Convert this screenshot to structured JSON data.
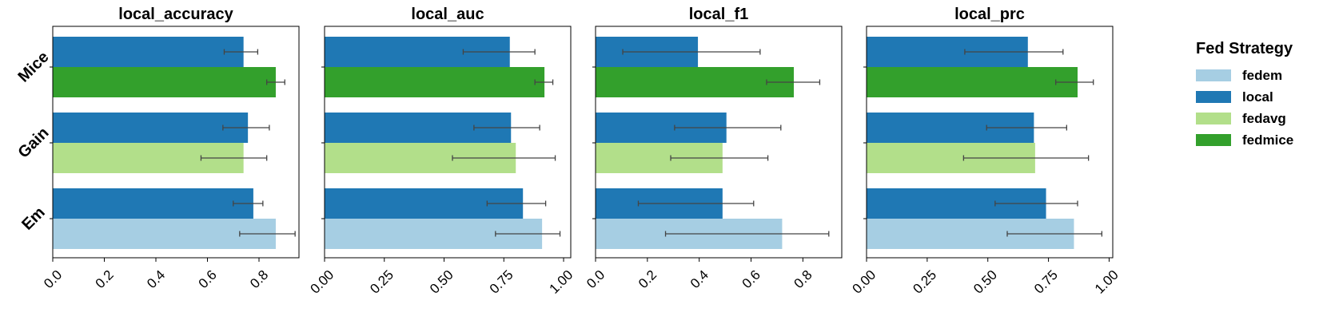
{
  "legend": {
    "title": "Fed Strategy",
    "items": [
      {
        "label": "fedem",
        "color": "#a6cee3"
      },
      {
        "label": "local",
        "color": "#1f78b4"
      },
      {
        "label": "fedavg",
        "color": "#b2df8a"
      },
      {
        "label": "fedmice",
        "color": "#33a02c"
      }
    ]
  },
  "chart_data": [
    {
      "type": "bar",
      "orientation": "horizontal",
      "title": "local_accuracy",
      "categories": [
        "Mice",
        "Gain",
        "Em"
      ],
      "xlim": [
        0,
        0.955
      ],
      "xticks": [
        0.0,
        0.2,
        0.4,
        0.6,
        0.8
      ],
      "xtick_labels": [
        "0.0",
        "0.2",
        "0.4",
        "0.6",
        "0.8"
      ],
      "bars": [
        {
          "category": "Mice",
          "strategy": "local",
          "value": 0.74,
          "err": [
            0.665,
            0.795
          ]
        },
        {
          "category": "Mice",
          "strategy": "fedmice",
          "value": 0.865,
          "err": [
            0.83,
            0.9
          ]
        },
        {
          "category": "Gain",
          "strategy": "local",
          "value": 0.757,
          "err": [
            0.66,
            0.84
          ]
        },
        {
          "category": "Gain",
          "strategy": "fedavg",
          "value": 0.74,
          "err": [
            0.575,
            0.83
          ]
        },
        {
          "category": "Em",
          "strategy": "local",
          "value": 0.778,
          "err": [
            0.7,
            0.815
          ]
        },
        {
          "category": "Em",
          "strategy": "fedem",
          "value": 0.865,
          "err": [
            0.725,
            0.94
          ]
        }
      ]
    },
    {
      "type": "bar",
      "orientation": "horizontal",
      "title": "local_auc",
      "categories": [
        "Mice",
        "Gain",
        "Em"
      ],
      "xlim": [
        0,
        1.03
      ],
      "xticks": [
        0.0,
        0.25,
        0.5,
        0.75,
        1.0
      ],
      "xtick_labels": [
        "0.00",
        "0.25",
        "0.50",
        "0.75",
        "1.00"
      ],
      "bars": [
        {
          "category": "Mice",
          "strategy": "local",
          "value": 0.775,
          "err": [
            0.58,
            0.88
          ]
        },
        {
          "category": "Mice",
          "strategy": "fedmice",
          "value": 0.92,
          "err": [
            0.88,
            0.955
          ]
        },
        {
          "category": "Gain",
          "strategy": "local",
          "value": 0.78,
          "err": [
            0.625,
            0.9
          ]
        },
        {
          "category": "Gain",
          "strategy": "fedavg",
          "value": 0.8,
          "err": [
            0.535,
            0.965
          ]
        },
        {
          "category": "Em",
          "strategy": "local",
          "value": 0.83,
          "err": [
            0.68,
            0.925
          ]
        },
        {
          "category": "Em",
          "strategy": "fedem",
          "value": 0.91,
          "err": [
            0.715,
            0.985
          ]
        }
      ]
    },
    {
      "type": "bar",
      "orientation": "horizontal",
      "title": "local_f1",
      "categories": [
        "Mice",
        "Gain",
        "Em"
      ],
      "xlim": [
        0,
        0.95
      ],
      "xticks": [
        0.0,
        0.2,
        0.4,
        0.6,
        0.8
      ],
      "xtick_labels": [
        "0.0",
        "0.2",
        "0.4",
        "0.6",
        "0.8"
      ],
      "bars": [
        {
          "category": "Mice",
          "strategy": "local",
          "value": 0.395,
          "err": [
            0.105,
            0.635
          ]
        },
        {
          "category": "Mice",
          "strategy": "fedmice",
          "value": 0.765,
          "err": [
            0.66,
            0.865
          ]
        },
        {
          "category": "Gain",
          "strategy": "local",
          "value": 0.505,
          "err": [
            0.305,
            0.715
          ]
        },
        {
          "category": "Gain",
          "strategy": "fedavg",
          "value": 0.49,
          "err": [
            0.29,
            0.665
          ]
        },
        {
          "category": "Em",
          "strategy": "local",
          "value": 0.49,
          "err": [
            0.165,
            0.61
          ]
        },
        {
          "category": "Em",
          "strategy": "fedem",
          "value": 0.72,
          "err": [
            0.27,
            0.9
          ]
        }
      ]
    },
    {
      "type": "bar",
      "orientation": "horizontal",
      "title": "local_prc",
      "categories": [
        "Mice",
        "Gain",
        "Em"
      ],
      "xlim": [
        0,
        1.015
      ],
      "xticks": [
        0.0,
        0.25,
        0.5,
        0.75,
        1.0
      ],
      "xtick_labels": [
        "0.00",
        "0.25",
        "0.50",
        "0.75",
        "1.00"
      ],
      "bars": [
        {
          "category": "Mice",
          "strategy": "local",
          "value": 0.665,
          "err": [
            0.405,
            0.81
          ]
        },
        {
          "category": "Mice",
          "strategy": "fedmice",
          "value": 0.87,
          "err": [
            0.78,
            0.935
          ]
        },
        {
          "category": "Gain",
          "strategy": "local",
          "value": 0.69,
          "err": [
            0.495,
            0.825
          ]
        },
        {
          "category": "Gain",
          "strategy": "fedavg",
          "value": 0.695,
          "err": [
            0.4,
            0.915
          ]
        },
        {
          "category": "Em",
          "strategy": "local",
          "value": 0.74,
          "err": [
            0.53,
            0.87
          ]
        },
        {
          "category": "Em",
          "strategy": "fedem",
          "value": 0.855,
          "err": [
            0.58,
            0.97
          ]
        }
      ]
    }
  ]
}
